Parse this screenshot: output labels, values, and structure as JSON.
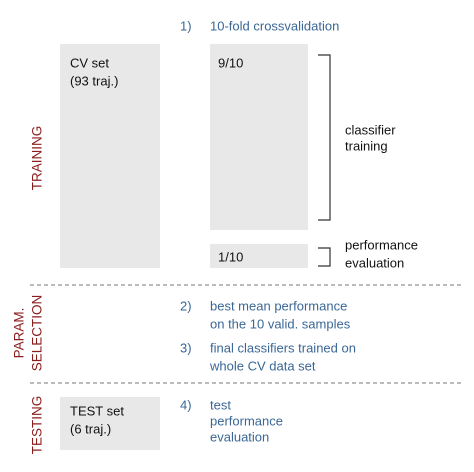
{
  "sections": [
    {
      "label": [
        "TRAINING"
      ]
    },
    {
      "label": [
        "PARAM.",
        "SELECTION"
      ]
    },
    {
      "label": [
        "TESTING"
      ]
    }
  ],
  "boxes": {
    "cv_set": [
      "CV set",
      "(93 traj.)"
    ],
    "train_fold": "9/10",
    "test_fold": "1/10",
    "test_set": [
      "TEST set",
      "(6 traj.)"
    ]
  },
  "brackets": {
    "training": [
      "classifier",
      "training"
    ],
    "evaluation": [
      "performance",
      "evaluation"
    ]
  },
  "steps": [
    {
      "number": "1)",
      "lines": [
        "10-fold crossvalidation"
      ]
    },
    {
      "number": "2)",
      "lines": [
        "best mean performance",
        "on the 10 valid. samples"
      ]
    },
    {
      "number": "3)",
      "lines": [
        "final classifiers trained on",
        "whole CV data set"
      ]
    },
    {
      "number": "4)",
      "lines": [
        "test",
        "performance",
        "evaluation"
      ]
    }
  ]
}
